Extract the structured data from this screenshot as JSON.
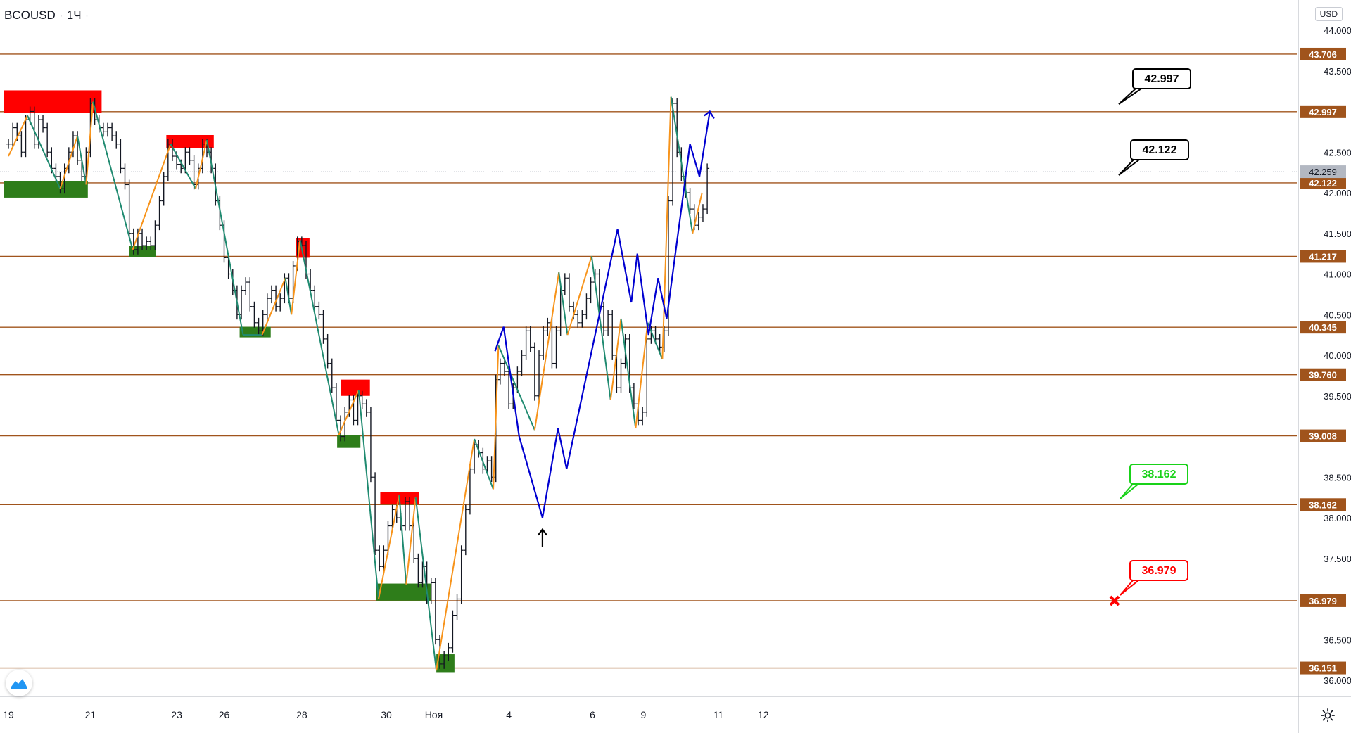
{
  "header": {
    "symbol": "BCOUSD",
    "separator": "·",
    "interval": "1Ч",
    "separator2": "·"
  },
  "currency": "USD",
  "colors": {
    "level": "#a0541c",
    "supply": "#ff0000",
    "demand": "#2e7d1a",
    "zigzag_up": "#f7931a",
    "zigzag_down": "#1f8a70",
    "forecast": "#0000d0",
    "target": "#000000",
    "tp": "#19d219",
    "sl": "#ff0000",
    "price_label": "#b3b8c2"
  },
  "icons": {
    "logo": "tradingview-logo-icon",
    "settings": "gear-icon"
  },
  "chart_data": {
    "type": "line",
    "title": "",
    "ylim": [
      35.9,
      44.15
    ],
    "x_ticks": [
      {
        "label": "19",
        "x": 0
      },
      {
        "label": "21",
        "x": 9.5
      },
      {
        "label": "23",
        "x": 19.5
      },
      {
        "label": "26",
        "x": 25
      },
      {
        "label": "28",
        "x": 34
      },
      {
        "label": "30",
        "x": 43.8
      },
      {
        "label": "Ноя",
        "x": 49.3
      },
      {
        "label": "4",
        "x": 58
      },
      {
        "label": "6",
        "x": 67.7
      },
      {
        "label": "9",
        "x": 73.6
      },
      {
        "label": "11",
        "x": 82.3
      },
      {
        "label": "12",
        "x": 87.5
      }
    ],
    "y_ticks": [
      {
        "label": "44.000",
        "v": 44.0
      },
      {
        "label": "43.500",
        "v": 43.5
      },
      {
        "label": "42.500",
        "v": 42.5
      },
      {
        "label": "42.000",
        "v": 42.0
      },
      {
        "label": "41.500",
        "v": 41.5
      },
      {
        "label": "41.000",
        "v": 41.0
      },
      {
        "label": "40.500",
        "v": 40.5
      },
      {
        "label": "40.000",
        "v": 40.0
      },
      {
        "label": "39.500",
        "v": 39.5
      },
      {
        "label": "38.500",
        "v": 38.5
      },
      {
        "label": "38.000",
        "v": 38.0
      },
      {
        "label": "37.500",
        "v": 37.5
      },
      {
        "label": "36.500",
        "v": 36.5
      },
      {
        "label": "36.000",
        "v": 36.0
      }
    ],
    "levels": [
      {
        "label": "43.706",
        "v": 43.706
      },
      {
        "label": "42.997",
        "v": 42.997
      },
      {
        "label": "42.122",
        "v": 42.122
      },
      {
        "label": "41.217",
        "v": 41.217
      },
      {
        "label": "40.345",
        "v": 40.345
      },
      {
        "label": "39.760",
        "v": 39.76
      },
      {
        "label": "39.008",
        "v": 39.008
      },
      {
        "label": "38.162",
        "v": 38.162
      },
      {
        "label": "36.979",
        "v": 36.979
      },
      {
        "label": "36.151",
        "v": 36.151
      }
    ],
    "last_price": {
      "label": "42.259",
      "v": 42.259
    },
    "supply_zones": [
      {
        "x0": -0.5,
        "x1": 10.8,
        "y0": 42.98,
        "y1": 43.26
      },
      {
        "x0": 18.3,
        "x1": 23.8,
        "y0": 42.55,
        "y1": 42.71
      },
      {
        "x0": 33.3,
        "x1": 34.9,
        "y0": 41.2,
        "y1": 41.44
      },
      {
        "x0": 38.5,
        "x1": 41.9,
        "y0": 39.5,
        "y1": 39.7
      },
      {
        "x0": 43.1,
        "x1": 47.6,
        "y0": 38.17,
        "y1": 38.32
      }
    ],
    "demand_zones": [
      {
        "x0": -0.5,
        "x1": 9.2,
        "y0": 41.94,
        "y1": 42.14
      },
      {
        "x0": 14.0,
        "x1": 17.1,
        "y0": 41.21,
        "y1": 41.35
      },
      {
        "x0": 26.8,
        "x1": 30.4,
        "y0": 40.22,
        "y1": 40.35
      },
      {
        "x0": 38.1,
        "x1": 40.8,
        "y0": 38.86,
        "y1": 39.02
      },
      {
        "x0": 42.6,
        "x1": 49.0,
        "y0": 36.98,
        "y1": 37.19
      },
      {
        "x0": 49.6,
        "x1": 51.7,
        "y0": 36.1,
        "y1": 36.32
      }
    ],
    "price_series": [
      [
        0,
        42.6
      ],
      [
        0.5,
        42.8
      ],
      [
        1,
        42.7
      ],
      [
        1.5,
        42.5
      ],
      [
        2,
        42.9
      ],
      [
        2.5,
        43.0
      ],
      [
        3,
        42.6
      ],
      [
        3.5,
        42.9
      ],
      [
        4,
        42.8
      ],
      [
        4.5,
        42.5
      ],
      [
        5,
        42.3
      ],
      [
        5.5,
        42.2
      ],
      [
        6,
        42.05
      ],
      [
        6.5,
        42.3
      ],
      [
        7,
        42.5
      ],
      [
        7.5,
        42.7
      ],
      [
        8,
        42.4
      ],
      [
        8.5,
        42.2
      ],
      [
        9,
        42.5
      ],
      [
        9.5,
        43.1
      ],
      [
        10,
        42.9
      ],
      [
        10.5,
        42.8
      ],
      [
        11,
        42.75
      ],
      [
        11.5,
        42.8
      ],
      [
        12,
        42.7
      ],
      [
        12.5,
        42.6
      ],
      [
        13,
        42.3
      ],
      [
        13.5,
        42.1
      ],
      [
        14,
        41.5
      ],
      [
        14.5,
        41.3
      ],
      [
        15,
        41.5
      ],
      [
        15.5,
        41.35
      ],
      [
        16,
        41.4
      ],
      [
        16.5,
        41.35
      ],
      [
        17,
        41.6
      ],
      [
        17.5,
        41.9
      ],
      [
        18,
        42.2
      ],
      [
        18.5,
        42.6
      ],
      [
        19,
        42.45
      ],
      [
        19.5,
        42.35
      ],
      [
        20,
        42.3
      ],
      [
        20.5,
        42.5
      ],
      [
        21,
        42.4
      ],
      [
        21.5,
        42.1
      ],
      [
        22,
        42.3
      ],
      [
        22.5,
        42.6
      ],
      [
        23,
        42.5
      ],
      [
        23.5,
        42.3
      ],
      [
        24,
        41.9
      ],
      [
        24.5,
        41.6
      ],
      [
        25,
        41.2
      ],
      [
        25.5,
        41.0
      ],
      [
        26,
        40.8
      ],
      [
        26.5,
        40.5
      ],
      [
        27,
        40.8
      ],
      [
        27.5,
        40.9
      ],
      [
        28,
        40.6
      ],
      [
        28.5,
        40.4
      ],
      [
        29,
        40.3
      ],
      [
        29.5,
        40.5
      ],
      [
        30,
        40.7
      ],
      [
        30.5,
        40.8
      ],
      [
        31,
        40.6
      ],
      [
        31.5,
        40.7
      ],
      [
        32,
        40.95
      ],
      [
        32.5,
        40.7
      ],
      [
        33,
        41.1
      ],
      [
        33.5,
        41.4
      ],
      [
        34,
        41.35
      ],
      [
        34.5,
        41.0
      ],
      [
        35,
        40.8
      ],
      [
        35.5,
        40.6
      ],
      [
        36,
        40.5
      ],
      [
        36.5,
        40.2
      ],
      [
        37,
        39.9
      ],
      [
        37.5,
        39.6
      ],
      [
        38,
        39.2
      ],
      [
        38.5,
        39.0
      ],
      [
        39,
        39.3
      ],
      [
        39.5,
        39.45
      ],
      [
        40,
        39.2
      ],
      [
        40.5,
        39.5
      ],
      [
        41,
        39.4
      ],
      [
        41.5,
        39.3
      ],
      [
        42,
        38.5
      ],
      [
        42.5,
        37.6
      ],
      [
        43,
        37.4
      ],
      [
        43.5,
        37.6
      ],
      [
        44,
        37.9
      ],
      [
        44.5,
        38.1
      ],
      [
        45,
        38.0
      ],
      [
        45.5,
        37.9
      ],
      [
        46,
        38.2
      ],
      [
        46.5,
        37.9
      ],
      [
        47,
        37.5
      ],
      [
        47.5,
        37.2
      ],
      [
        48,
        37.4
      ],
      [
        48.5,
        37.0
      ],
      [
        49,
        37.2
      ],
      [
        49.5,
        36.5
      ],
      [
        50,
        36.2
      ],
      [
        50.5,
        36.3
      ],
      [
        51,
        36.4
      ],
      [
        51.5,
        36.8
      ],
      [
        52,
        37.0
      ],
      [
        52.5,
        37.6
      ],
      [
        53,
        38.1
      ],
      [
        53.5,
        38.6
      ],
      [
        54,
        38.9
      ],
      [
        54.5,
        38.8
      ],
      [
        55,
        38.6
      ],
      [
        55.5,
        38.7
      ],
      [
        56,
        38.5
      ],
      [
        56.5,
        39.7
      ],
      [
        57,
        39.9
      ],
      [
        57.5,
        39.8
      ],
      [
        58,
        39.4
      ],
      [
        58.5,
        39.6
      ],
      [
        59,
        39.8
      ],
      [
        59.5,
        40.0
      ],
      [
        60,
        40.3
      ],
      [
        60.5,
        40.1
      ],
      [
        61,
        39.5
      ],
      [
        61.5,
        40.0
      ],
      [
        62,
        40.3
      ],
      [
        62.5,
        40.4
      ],
      [
        63,
        39.9
      ],
      [
        63.5,
        40.3
      ],
      [
        64,
        40.8
      ],
      [
        64.5,
        40.95
      ],
      [
        65,
        40.6
      ],
      [
        65.5,
        40.5
      ],
      [
        66,
        40.4
      ],
      [
        66.5,
        40.5
      ],
      [
        67,
        40.7
      ],
      [
        67.5,
        40.9
      ],
      [
        68,
        41.0
      ],
      [
        68.5,
        40.6
      ],
      [
        69,
        40.3
      ],
      [
        69.5,
        40.5
      ],
      [
        70,
        40.0
      ],
      [
        70.5,
        39.6
      ],
      [
        71,
        39.9
      ],
      [
        71.5,
        40.2
      ],
      [
        72,
        39.6
      ],
      [
        72.5,
        39.4
      ],
      [
        73,
        39.2
      ],
      [
        73.5,
        39.3
      ],
      [
        74,
        40.2
      ],
      [
        74.5,
        40.3
      ],
      [
        75,
        40.2
      ],
      [
        75.5,
        40.1
      ],
      [
        76,
        40.3
      ],
      [
        76.5,
        41.9
      ],
      [
        77,
        43.1
      ],
      [
        77.5,
        42.5
      ],
      [
        78,
        42.2
      ],
      [
        78.5,
        42.0
      ],
      [
        79,
        41.8
      ],
      [
        79.5,
        41.6
      ],
      [
        80,
        41.7
      ],
      [
        80.5,
        41.8
      ],
      [
        81,
        42.3
      ]
    ],
    "zigzag": [
      [
        0,
        42.45
      ],
      [
        2.2,
        42.95
      ],
      [
        6,
        42.05
      ],
      [
        8,
        42.7
      ],
      [
        9,
        42.1
      ],
      [
        9.8,
        43.12
      ],
      [
        14.4,
        41.3
      ],
      [
        18.8,
        42.6
      ],
      [
        21.7,
        42.05
      ],
      [
        23,
        42.65
      ],
      [
        27.2,
        40.25
      ],
      [
        29.4,
        40.25
      ],
      [
        32.1,
        40.95
      ],
      [
        32.8,
        40.5
      ],
      [
        33.8,
        41.42
      ],
      [
        38.3,
        39.02
      ],
      [
        40.6,
        39.57
      ],
      [
        42.9,
        37.0
      ],
      [
        45.3,
        38.28
      ],
      [
        46.1,
        37.18
      ],
      [
        47.2,
        38.25
      ],
      [
        49.6,
        36.12
      ],
      [
        54.0,
        38.97
      ],
      [
        56.2,
        38.35
      ],
      [
        56.8,
        40.12
      ],
      [
        61.0,
        39.08
      ],
      [
        63.8,
        41.02
      ],
      [
        64.8,
        40.25
      ],
      [
        67.6,
        41.22
      ],
      [
        69.8,
        39.45
      ],
      [
        71.0,
        40.45
      ],
      [
        72.7,
        39.1
      ],
      [
        74.1,
        40.4
      ],
      [
        75.8,
        39.95
      ],
      [
        76.8,
        43.18
      ],
      [
        79.3,
        41.5
      ],
      [
        80.4,
        42.0
      ]
    ],
    "forecast": [
      [
        56.4,
        40.05
      ],
      [
        57.4,
        40.35
      ],
      [
        59.2,
        39.0
      ],
      [
        61.9,
        38.0
      ],
      [
        63.7,
        39.1
      ],
      [
        64.7,
        38.6
      ],
      [
        70.6,
        41.55
      ],
      [
        72.2,
        40.65
      ],
      [
        72.9,
        41.25
      ],
      [
        74.2,
        40.25
      ],
      [
        75.3,
        40.95
      ],
      [
        76.3,
        40.45
      ],
      [
        79.0,
        42.6
      ],
      [
        80.1,
        42.2
      ],
      [
        81.3,
        43.0
      ]
    ],
    "target_arrow": {
      "x": 61.9,
      "y": 37.9
    },
    "callouts": [
      {
        "label": "42.997",
        "kind": "target",
        "v": 42.997
      },
      {
        "label": "42.122",
        "kind": "target",
        "v": 42.122
      },
      {
        "label": "38.162",
        "kind": "tp",
        "v": 38.162
      },
      {
        "label": "36.979",
        "kind": "sl",
        "v": 36.979
      }
    ]
  }
}
